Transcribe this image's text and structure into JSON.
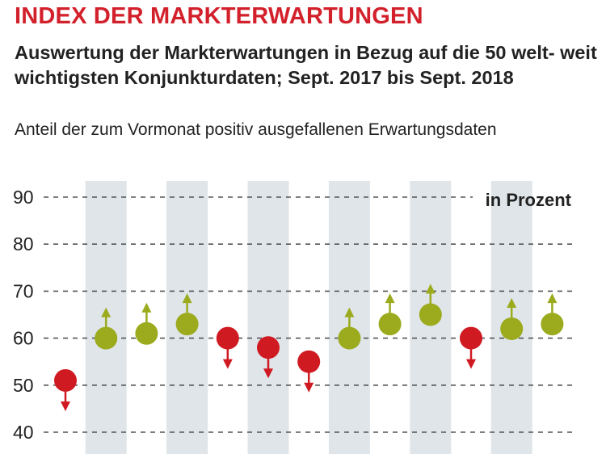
{
  "header": {
    "title": "INDEX DER MARKTERWARTUNGEN",
    "subtitle": "Auswertung der Markterwartungen in Bezug auf die 50 welt- weit wichtigsten Konjunkturdaten; Sept. 2017 bis Sept. 2018"
  },
  "chart_data": {
    "type": "scatter",
    "title": "Anteil der zum Vormonat positiv ausgefallenen Erwartungsdaten",
    "unit_label": "in Prozent",
    "y_ticks": [
      40,
      50,
      60,
      70,
      80,
      90
    ],
    "ylim": [
      40,
      90
    ],
    "grid": "horizontal dashed",
    "points": [
      {
        "value": 51,
        "direction": "down"
      },
      {
        "value": 60,
        "direction": "up"
      },
      {
        "value": 61,
        "direction": "up"
      },
      {
        "value": 63,
        "direction": "up"
      },
      {
        "value": 60,
        "direction": "down"
      },
      {
        "value": 58,
        "direction": "down"
      },
      {
        "value": 55,
        "direction": "down"
      },
      {
        "value": 60,
        "direction": "up"
      },
      {
        "value": 63,
        "direction": "up"
      },
      {
        "value": 65,
        "direction": "up"
      },
      {
        "value": 60,
        "direction": "down"
      },
      {
        "value": 62,
        "direction": "up"
      },
      {
        "value": 63,
        "direction": "up"
      }
    ],
    "colors": {
      "up": "#9bab1d",
      "down": "#d01a22",
      "band": "#dfe5e8",
      "grid": "#555555"
    }
  }
}
